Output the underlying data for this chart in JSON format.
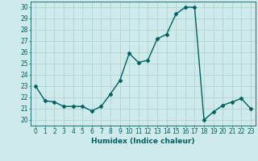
{
  "x": [
    0,
    1,
    2,
    3,
    4,
    5,
    6,
    7,
    8,
    9,
    10,
    11,
    12,
    13,
    14,
    15,
    16,
    17,
    18,
    19,
    20,
    21,
    22,
    23
  ],
  "y": [
    23,
    21.7,
    21.6,
    21.2,
    21.2,
    21.2,
    20.8,
    21.2,
    22.3,
    23.5,
    25.9,
    25.1,
    25.3,
    27.2,
    27.6,
    29.4,
    30.0,
    30.0,
    20.0,
    20.7,
    21.3,
    21.6,
    21.9,
    21.0
  ],
  "line_color": "#006060",
  "marker": "D",
  "markersize": 2.5,
  "linewidth": 1.0,
  "xlabel": "Humidex (Indice chaleur)",
  "xlim": [
    -0.5,
    23.5
  ],
  "ylim": [
    19.5,
    30.5
  ],
  "yticks": [
    20,
    21,
    22,
    23,
    24,
    25,
    26,
    27,
    28,
    29,
    30
  ],
  "xticks": [
    0,
    1,
    2,
    3,
    4,
    5,
    6,
    7,
    8,
    9,
    10,
    11,
    12,
    13,
    14,
    15,
    16,
    17,
    18,
    19,
    20,
    21,
    22,
    23
  ],
  "bg_color": "#ceeaea",
  "grid_color": "#aecece",
  "axis_fontsize": 6.5,
  "tick_fontsize": 5.5
}
